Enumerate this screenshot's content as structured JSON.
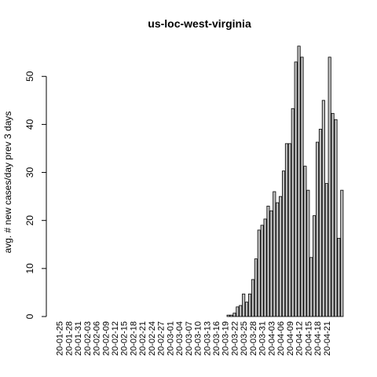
{
  "chart_data": {
    "type": "bar",
    "title": "us-loc-west-virginia",
    "xlabel": "",
    "ylabel": "avg. # new cases/day prev  3  days",
    "ylim": [
      0,
      58
    ],
    "yticks": [
      0,
      10,
      20,
      30,
      40,
      50
    ],
    "x_tick_labels": [
      "20-01-25",
      "20-01-28",
      "20-01-31",
      "20-02-03",
      "20-02-06",
      "20-02-09",
      "20-02-12",
      "20-02-15",
      "20-02-18",
      "20-02-21",
      "20-02-24",
      "20-02-27",
      "20-03-01",
      "20-03-04",
      "20-03-07",
      "20-03-10",
      "20-03-13",
      "20-03-16",
      "20-03-19",
      "20-03-22",
      "20-03-25",
      "20-03-28",
      "20-03-31",
      "20-04-03",
      "20-04-06",
      "20-04-09",
      "20-04-12",
      "20-04-15",
      "20-04-18",
      "20-04-21"
    ],
    "start_date": "2020-01-25",
    "values": [
      0,
      0,
      0,
      0,
      0,
      0,
      0,
      0,
      0,
      0,
      0,
      0,
      0,
      0,
      0,
      0,
      0,
      0,
      0,
      0,
      0,
      0,
      0,
      0,
      0,
      0,
      0,
      0,
      0,
      0,
      0,
      0,
      0,
      0,
      0,
      0,
      0,
      0,
      0,
      0,
      0,
      0,
      0,
      0,
      0,
      0,
      0,
      0,
      0,
      0,
      0,
      0,
      0,
      0,
      0,
      0.3,
      0.3,
      0.7,
      2.0,
      2.3,
      4.7,
      3.0,
      4.7,
      7.7,
      12.0,
      18.0,
      19.0,
      20.3,
      23.0,
      22.0,
      26.0,
      23.7,
      25.0,
      30.3,
      36.0,
      36.0,
      43.3,
      53.0,
      56.3,
      54.0,
      31.3,
      26.3,
      12.3,
      21.0,
      36.3,
      39.0,
      45.0,
      27.7,
      54.0,
      42.3,
      41.0,
      16.3,
      26.3
    ],
    "bar_fill": "#bebebe",
    "bar_stroke": "#000000"
  }
}
